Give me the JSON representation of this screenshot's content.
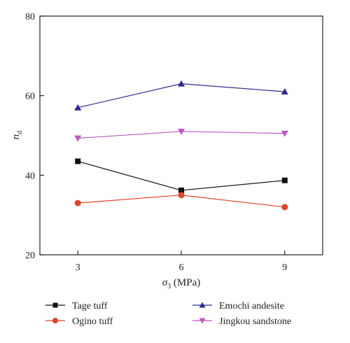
{
  "chart_data": {
    "type": "line",
    "x": [
      3,
      6,
      9
    ],
    "xticks": [
      "3",
      "6",
      "9"
    ],
    "yticks": [
      "20",
      "40",
      "60",
      "80"
    ],
    "xlim": [
      1.9,
      10.1
    ],
    "ylim": [
      20,
      80
    ],
    "xlabel_symbol": "σ",
    "xlabel_sub": "3",
    "xlabel_unit": " (MPa)",
    "ylabel_symbol": "n",
    "ylabel_sub": "d",
    "grid": false,
    "legend_position": "bottom",
    "series": [
      {
        "name": "Tage tuff",
        "marker": "square",
        "color": "#111111",
        "values": [
          43.5,
          36.2,
          38.7
        ]
      },
      {
        "name": "Emochi andesite",
        "marker": "triangle-up",
        "color": "#2e2a8c",
        "values": [
          57,
          63,
          61
        ]
      },
      {
        "name": "Ogino tuff",
        "marker": "circle",
        "color": "#e0442b",
        "values": [
          33,
          35,
          32
        ]
      },
      {
        "name": "Jingkou sandstone",
        "marker": "triangle-down",
        "color": "#c058c0",
        "values": [
          49.3,
          51,
          50.5
        ]
      }
    ]
  }
}
